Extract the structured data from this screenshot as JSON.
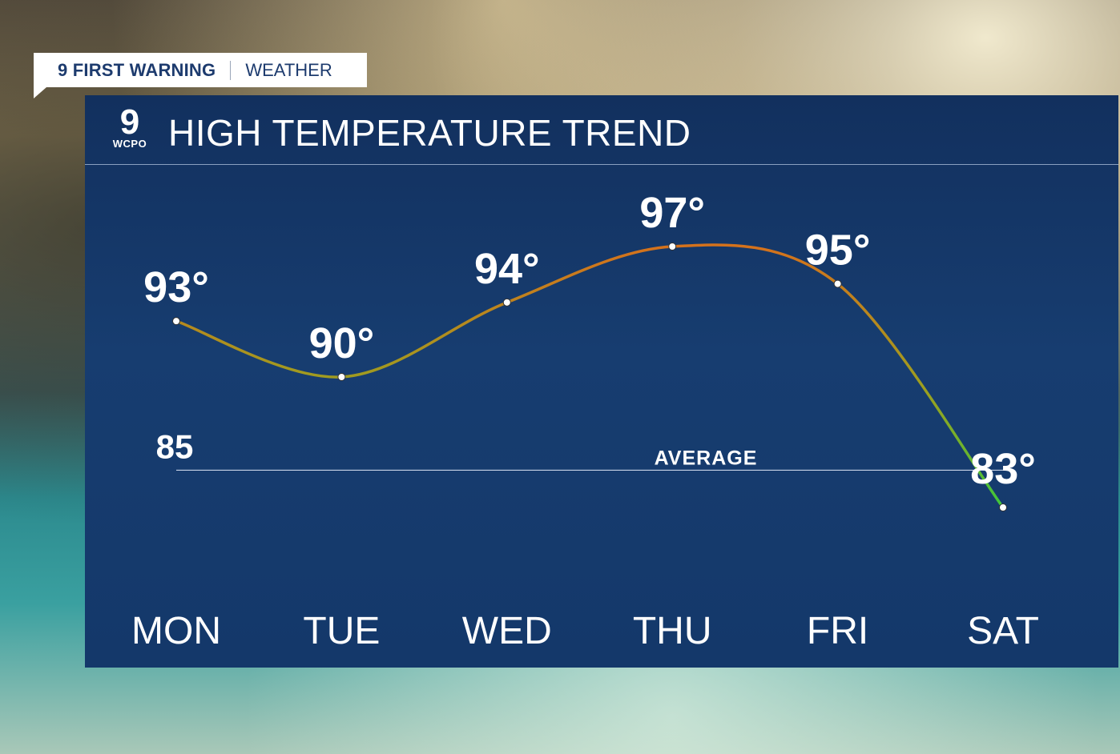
{
  "brand": {
    "name": "9 FIRST WARNING",
    "section": "WEATHER"
  },
  "logo": {
    "number": "9",
    "callsign": "WCPO"
  },
  "title": "HIGH TEMPERATURE TREND",
  "colors": {
    "panel": "#14386a",
    "warm": "#d4721c",
    "mild": "#9aa020",
    "cool": "#3cc83c"
  },
  "chart_data": {
    "type": "line",
    "title": "HIGH TEMPERATURE TREND",
    "categories": [
      "MON",
      "TUE",
      "WED",
      "THU",
      "FRI",
      "SAT"
    ],
    "values": [
      93,
      90,
      94,
      97,
      95,
      83
    ],
    "value_labels": [
      "93°",
      "90°",
      "94°",
      "97°",
      "95°",
      "83°"
    ],
    "average": {
      "value": 85,
      "label": "85",
      "text": "AVERAGE"
    },
    "grid": false,
    "legend": "none"
  }
}
